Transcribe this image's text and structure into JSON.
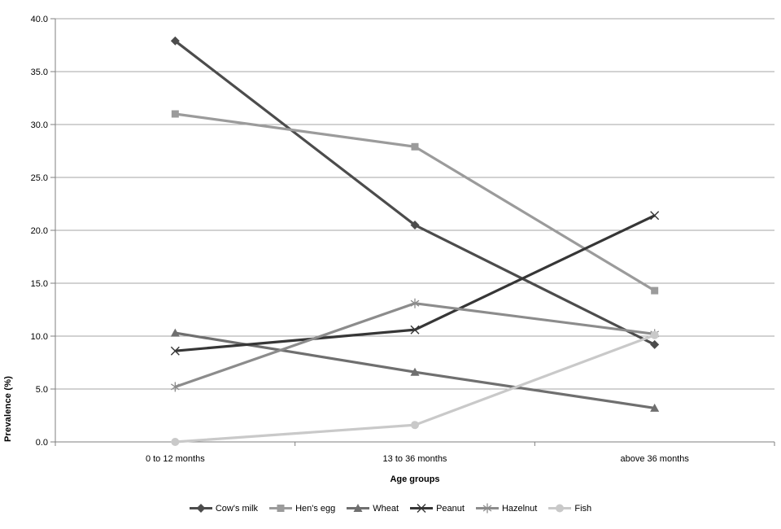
{
  "chart_data": {
    "type": "line",
    "title": "",
    "xlabel": "Age groups",
    "ylabel": "Prevalence (%)",
    "categories": [
      "0 to 12 months",
      "13 to 36 months",
      "above 36 months"
    ],
    "series": [
      {
        "name": "Cow's milk",
        "marker": "diamond",
        "color": "#4C4C4C",
        "values": [
          37.9,
          20.5,
          9.2
        ]
      },
      {
        "name": "Hen's egg",
        "marker": "square",
        "color": "#9B9B9B",
        "values": [
          31.0,
          27.9,
          14.3
        ]
      },
      {
        "name": "Wheat",
        "marker": "triangle",
        "color": "#6F6F6F",
        "values": [
          10.3,
          6.6,
          3.2
        ]
      },
      {
        "name": "Peanut",
        "marker": "x",
        "color": "#363636",
        "values": [
          8.6,
          10.6,
          21.4
        ]
      },
      {
        "name": "Hazelnut",
        "marker": "asterisk",
        "color": "#8C8C8C",
        "values": [
          5.2,
          13.1,
          10.2
        ]
      },
      {
        "name": "Fish",
        "marker": "circle",
        "color": "#C9C9C9",
        "values": [
          0.0,
          1.6,
          10.1
        ]
      }
    ],
    "ylim": [
      0,
      40
    ],
    "ytick_step": 5,
    "yticks": [
      "0.0",
      "5.0",
      "10.0",
      "15.0",
      "20.0",
      "25.0",
      "30.0",
      "35.0",
      "40.0"
    ],
    "grid": true,
    "legend_position": "bottom",
    "colors": {
      "background": "#FFFFFF",
      "gridline": "#A6A6A6",
      "axis": "#7F7F7F",
      "text": "#000000"
    }
  }
}
